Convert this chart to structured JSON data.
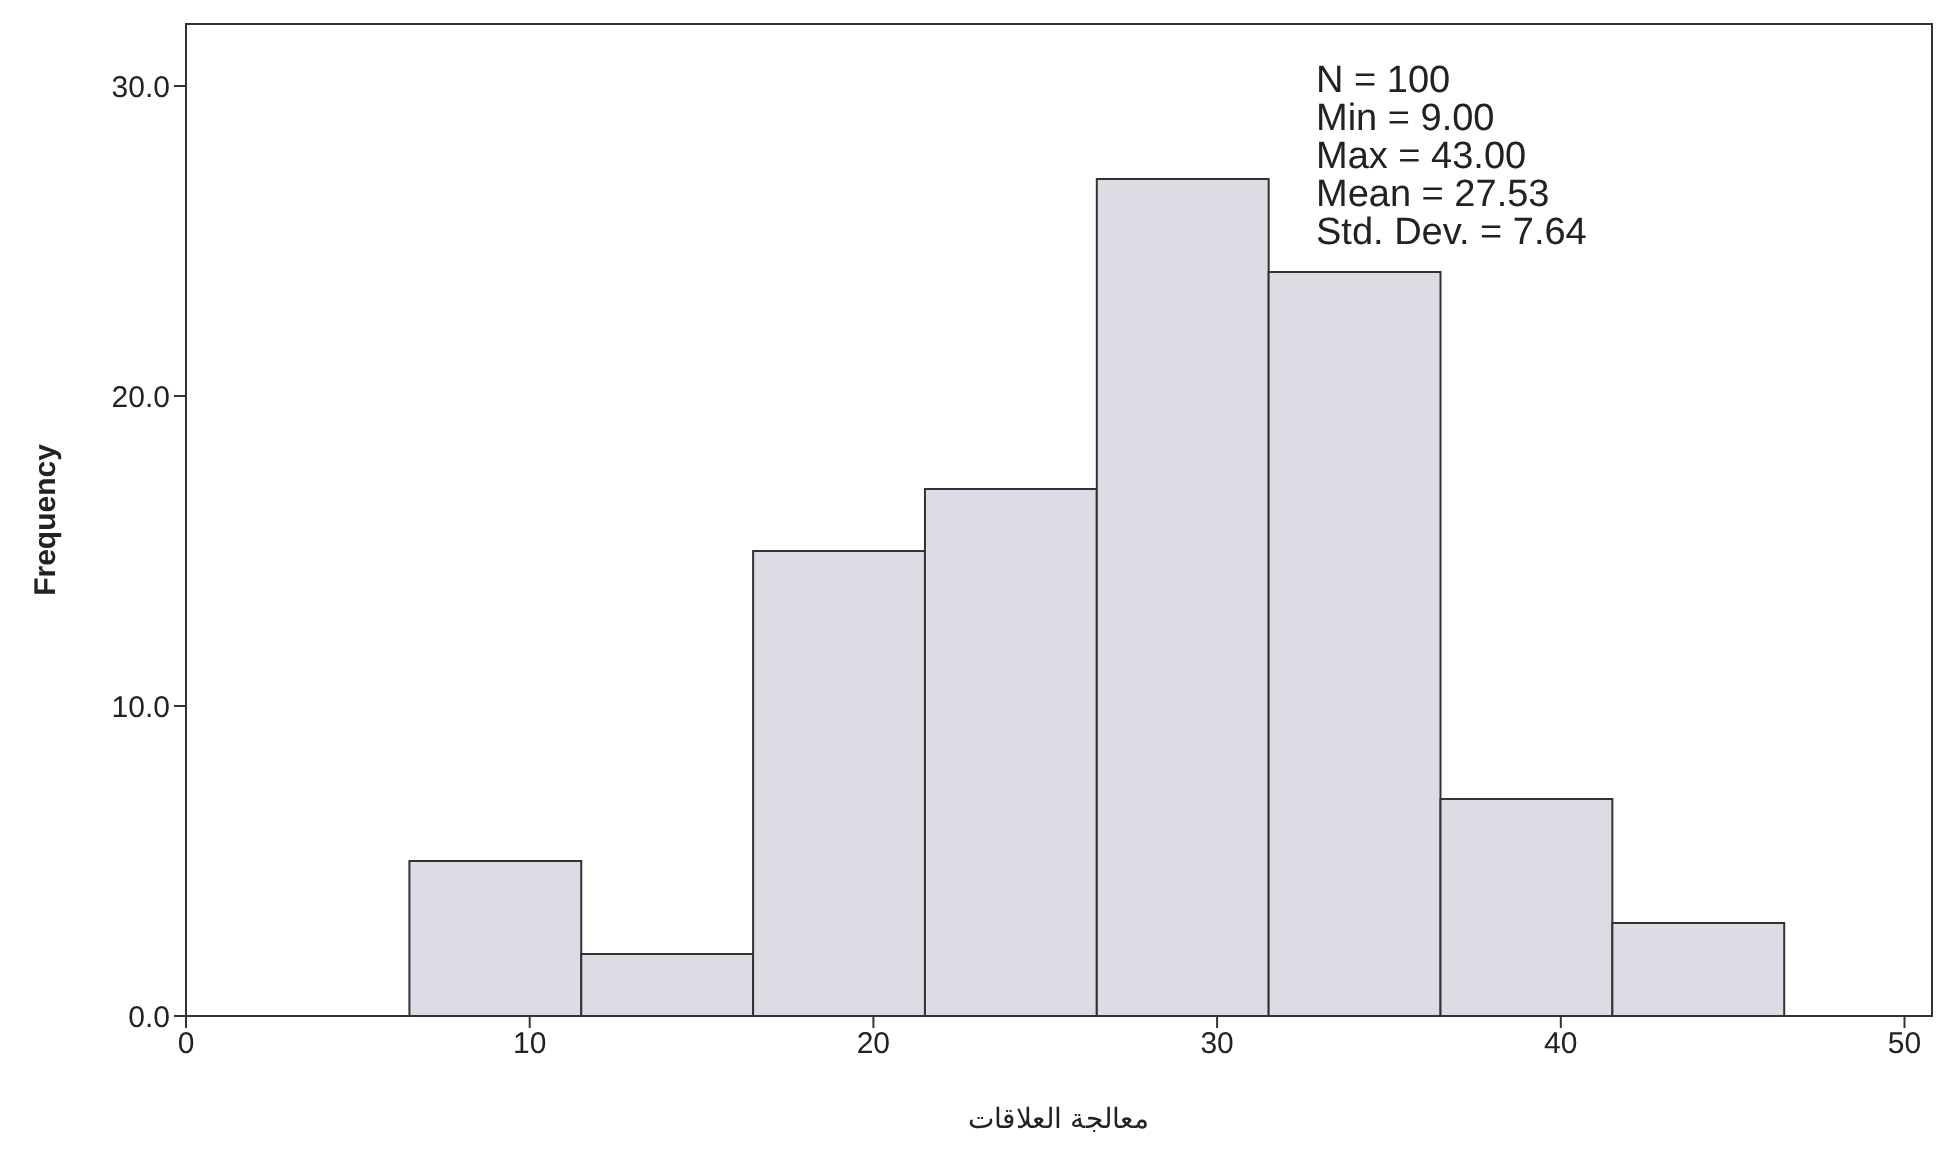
{
  "chart_data": {
    "type": "histogram",
    "xlabel": "معالجة العلاقات",
    "ylabel": "Frequency",
    "bins": [
      6.5,
      11.5,
      16.5,
      21.5,
      26.5,
      31.5,
      36.5,
      41.5,
      46.5
    ],
    "values": [
      5,
      2,
      15,
      17,
      27,
      24,
      7,
      3
    ],
    "color": "#dcdce4",
    "xlim": [
      0,
      50.8
    ],
    "xticks": [
      0,
      10,
      20,
      30,
      40,
      50
    ],
    "ylim": [
      0,
      32
    ],
    "yticks": [
      {
        "value": 0,
        "label": "0.0"
      },
      {
        "value": 10,
        "label": "10.0"
      },
      {
        "value": 20,
        "label": "20.0"
      },
      {
        "value": 30,
        "label": "30.0"
      }
    ],
    "annotations": [
      "N = 100",
      "Min = 9.00",
      "Max = 43.00",
      "Mean = 27.53",
      "Std. Dev. = 7.64"
    ],
    "grid": false,
    "legend": false
  }
}
